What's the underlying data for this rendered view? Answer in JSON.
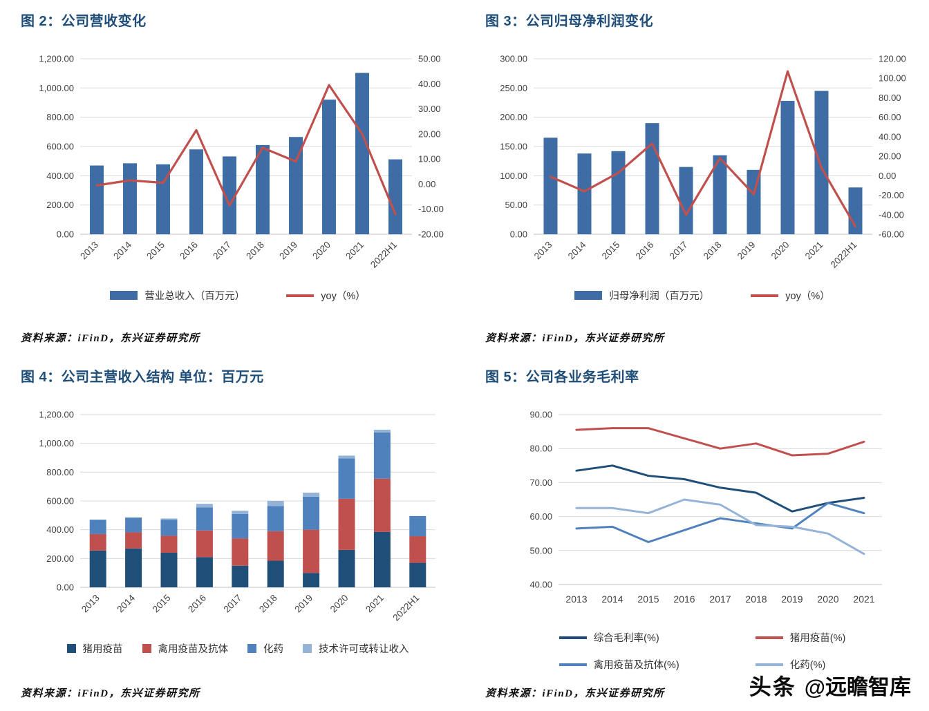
{
  "watermark": {
    "brand": "头条",
    "handle": "@远瞻智库"
  },
  "chart_data": [
    {
      "id": "figure-2",
      "type": "bar+line",
      "title": "图  2：公司营收变化",
      "source": "资料来源：iFinD，东兴证券研究所",
      "legend_position": "bottom",
      "grid": true,
      "categories": [
        "2013",
        "2014",
        "2015",
        "2016",
        "2017",
        "2018",
        "2019",
        "2020",
        "2021",
        "2022H1"
      ],
      "bar": {
        "name": "营业总收入（百万元）",
        "color": "#3E6DA5",
        "values": [
          470,
          485,
          478,
          580,
          532,
          610,
          665,
          920,
          1103,
          512
        ]
      },
      "line": {
        "name": "yoy（%）",
        "color": "#C0504D",
        "axis": "right",
        "values": [
          -0.5,
          1.5,
          0.5,
          21.5,
          -8.5,
          14.5,
          9,
          39.5,
          20,
          -12
        ]
      },
      "y_left": {
        "min": 0,
        "max": 1200,
        "step": 200
      },
      "y_right": {
        "min": -20,
        "max": 50,
        "step": 10
      }
    },
    {
      "id": "figure-3",
      "type": "bar+line",
      "title": "图  3：公司归母净利润变化",
      "source": "资料来源：iFinD，东兴证券研究所",
      "legend_position": "bottom",
      "grid": true,
      "categories": [
        "2013",
        "2014",
        "2015",
        "2016",
        "2017",
        "2018",
        "2019",
        "2020",
        "2021",
        "2022H1"
      ],
      "bar": {
        "name": "归母净利润（百万元）",
        "color": "#3E6DA5",
        "values": [
          165,
          138,
          142,
          190,
          115,
          135,
          110,
          228,
          245,
          80
        ]
      },
      "line": {
        "name": "yoy（%）",
        "color": "#C0504D",
        "axis": "right",
        "values": [
          -1,
          -16,
          3,
          33,
          -40,
          18,
          -19,
          107,
          8,
          -52
        ]
      },
      "y_left": {
        "min": 0,
        "max": 300,
        "step": 50
      },
      "y_right": {
        "min": -60,
        "max": 120,
        "step": 20
      }
    },
    {
      "id": "figure-4",
      "type": "stacked-bar",
      "title": "图  4：公司主营收入结构 单位：百万元",
      "source": "资料来源：iFinD，东兴证券研究所",
      "legend_position": "bottom",
      "grid": true,
      "categories": [
        "2013",
        "2014",
        "2015",
        "2016",
        "2017",
        "2018",
        "2019",
        "2020",
        "2021",
        "2022H1"
      ],
      "series": [
        {
          "name": "猪用疫苗",
          "color": "#1F4E79",
          "values": [
            255,
            270,
            240,
            210,
            150,
            185,
            100,
            260,
            385,
            170
          ]
        },
        {
          "name": "禽用疫苗及抗体",
          "color": "#C0504D",
          "values": [
            115,
            112,
            118,
            185,
            190,
            205,
            300,
            355,
            370,
            185
          ]
        },
        {
          "name": "化药",
          "color": "#4F81BD",
          "values": [
            100,
            103,
            112,
            160,
            170,
            175,
            230,
            280,
            320,
            140
          ]
        },
        {
          "name": "技术许可或转让收入",
          "color": "#95B3D7",
          "values": [
            0,
            0,
            8,
            25,
            22,
            35,
            28,
            20,
            20,
            0
          ]
        }
      ],
      "y_left": {
        "min": 0,
        "max": 1200,
        "step": 200
      }
    },
    {
      "id": "figure-5",
      "type": "line",
      "title": "图  5：公司各业务毛利率",
      "source": "资料来源：iFinD，东兴证券研究所",
      "legend_position": "bottom",
      "grid": true,
      "categories": [
        "2013",
        "2014",
        "2015",
        "2016",
        "2017",
        "2018",
        "2019",
        "2020",
        "2021"
      ],
      "series": [
        {
          "name": "综合毛利率(%)",
          "color": "#1F4E79",
          "values": [
            73.5,
            75,
            72,
            71,
            68.5,
            67,
            61.5,
            64,
            65.5
          ]
        },
        {
          "name": "猪用疫苗(%)",
          "color": "#C0504D",
          "values": [
            85.5,
            86,
            86,
            83,
            80,
            81.5,
            78,
            78.5,
            82
          ]
        },
        {
          "name": "禽用疫苗及抗体(%)",
          "color": "#4F81BD",
          "values": [
            56.5,
            57,
            52.5,
            56,
            59.5,
            58,
            56.5,
            64,
            61
          ]
        },
        {
          "name": "化药(%)",
          "color": "#95B3D7",
          "values": [
            62.5,
            62.5,
            61,
            65,
            63.5,
            57.5,
            57,
            55,
            49
          ]
        }
      ],
      "y_left": {
        "min": 40,
        "max": 90,
        "step": 10
      }
    }
  ]
}
